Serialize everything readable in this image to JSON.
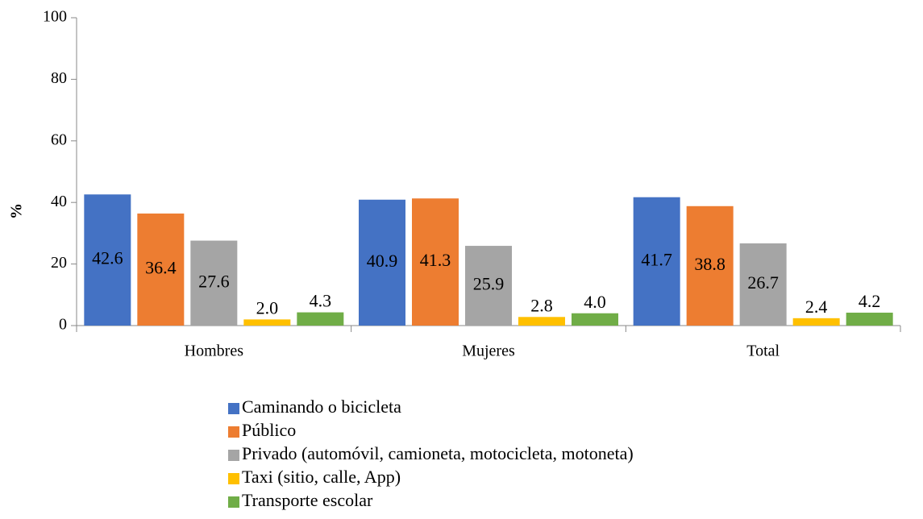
{
  "chart_data": {
    "type": "bar",
    "y_label": "%",
    "categories": [
      "Hombres",
      "Mujeres",
      "Total"
    ],
    "series": [
      {
        "name": "Caminando o bicicleta",
        "color": "#4472c4",
        "values": [
          42.6,
          40.9,
          41.7
        ]
      },
      {
        "name": "Público",
        "color": "#ed7d31",
        "values": [
          36.4,
          41.3,
          38.8
        ]
      },
      {
        "name": "Privado (automóvil, camioneta, motocicleta, motoneta)",
        "color": "#a5a5a5",
        "values": [
          27.6,
          25.9,
          26.7
        ]
      },
      {
        "name": "Taxi (sitio, calle, App)",
        "color": "#ffc000",
        "values": [
          2,
          2.8,
          2.4
        ],
        "value_labels": [
          "2.0",
          "2.8",
          "2.4"
        ]
      },
      {
        "name": "Transporte escolar",
        "color": "#70ad47",
        "values": [
          4.3,
          4,
          4.2
        ],
        "value_labels": [
          "4.3",
          "4.0",
          "4.2"
        ]
      }
    ],
    "ylim": [
      0,
      100
    ],
    "yticks": [
      0,
      20,
      40,
      60,
      80,
      100
    ],
    "grid": false,
    "legend": "bottom"
  }
}
